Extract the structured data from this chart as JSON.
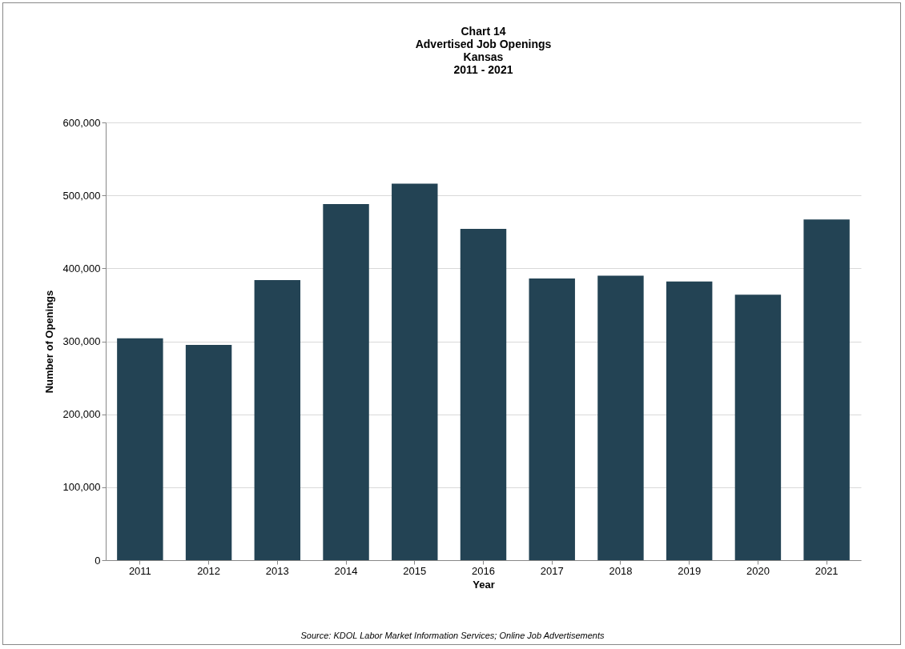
{
  "chart_data": {
    "type": "bar",
    "title": "Chart 14\nAdvertised Job Openings\nKansas\n2011 - 2021",
    "xlabel": "Year",
    "ylabel": "Number of Openings",
    "categories": [
      "2011",
      "2012",
      "2013",
      "2014",
      "2015",
      "2016",
      "2017",
      "2018",
      "2019",
      "2020",
      "2021"
    ],
    "values": [
      304000,
      295000,
      384000,
      488000,
      516000,
      454000,
      386000,
      390000,
      382000,
      364000,
      467000
    ],
    "color": "#234354",
    "ylim": [
      0,
      600000
    ],
    "yticks": [
      0,
      {
        "value": 100000,
        "label": "100,000"
      },
      {
        "value": 200000,
        "label": "200,000"
      },
      {
        "value": 300000,
        "label": "300,000"
      },
      {
        "value": 400000,
        "label": "400,000"
      },
      {
        "value": 500000,
        "label": "500,000"
      },
      {
        "value": 600000,
        "label": "600,000"
      }
    ],
    "grid": "y",
    "annotations": [
      "Source: KDOL Labor Market Information Services; Online Job Advertisements"
    ]
  }
}
